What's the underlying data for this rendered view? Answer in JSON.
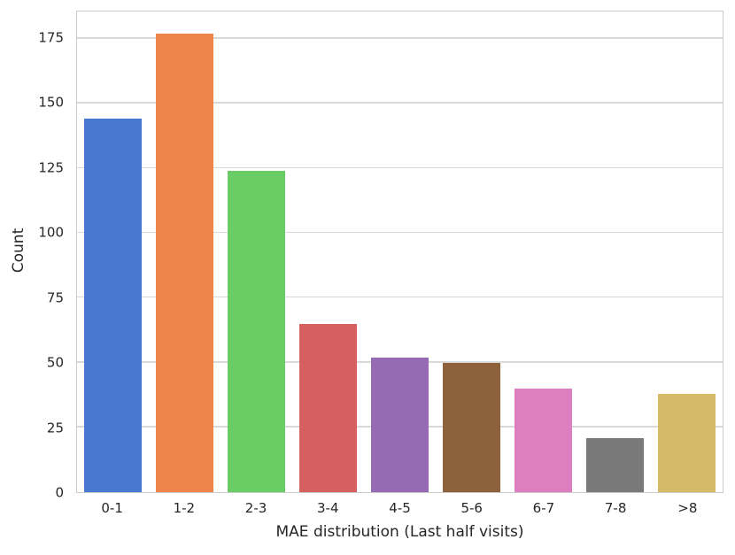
{
  "chart_data": {
    "type": "bar",
    "title": "",
    "xlabel": "MAE distribution (Last half visits)",
    "ylabel": "Count",
    "categories": [
      "0-1",
      "1-2",
      "2-3",
      "3-4",
      "4-5",
      "5-6",
      "6-7",
      "7-8",
      ">8"
    ],
    "values": [
      144,
      177,
      124,
      65,
      52,
      50,
      40,
      21,
      38
    ],
    "bar_colors": [
      "#4878D0",
      "#EE854A",
      "#6ACC64",
      "#D65F5F",
      "#956CB4",
      "#8C613C",
      "#DC7EC0",
      "#797979",
      "#D5BB67"
    ],
    "yticks": [
      0,
      25,
      50,
      75,
      100,
      125,
      150,
      175
    ],
    "ylim": [
      0,
      185.5
    ],
    "grid": "horizontal",
    "grid_color": "#d9d9d9",
    "spine_color": "#cccccc",
    "text_color": "#262626",
    "background_color": "#ffffff",
    "legend": "none"
  }
}
